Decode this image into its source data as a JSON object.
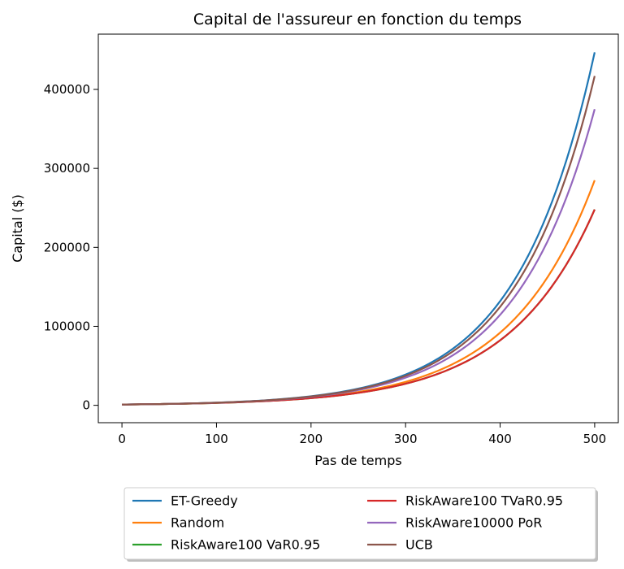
{
  "chart_data": {
    "type": "line",
    "title": "Capital de l'assureur en fonction du temps",
    "xlabel": "Pas de temps",
    "ylabel": "Capital ($)",
    "xlim": [
      -25,
      525
    ],
    "ylim": [
      -22000,
      470000
    ],
    "xticks": [
      0,
      100,
      200,
      300,
      400,
      500
    ],
    "yticks": [
      0,
      100000,
      200000,
      300000,
      400000
    ],
    "x_end": 500,
    "legend_position": "below, 2 columns",
    "grid": false,
    "series": [
      {
        "name": "ET-Greedy",
        "color": "#1f77b4",
        "start": 1000,
        "end": 447000
      },
      {
        "name": "Random",
        "color": "#ff7f0e",
        "start": 1000,
        "end": 285000
      },
      {
        "name": "RiskAware100 VaR0.95",
        "color": "#2ca02c",
        "start": 1000,
        "end": 248000
      },
      {
        "name": "RiskAware100 TVaR0.95",
        "color": "#d62728",
        "start": 1000,
        "end": 248000
      },
      {
        "name": "RiskAware10000 PoR",
        "color": "#9467bd",
        "start": 1000,
        "end": 375000
      },
      {
        "name": "UCB",
        "color": "#8c564b",
        "start": 1000,
        "end": 417000
      }
    ]
  }
}
